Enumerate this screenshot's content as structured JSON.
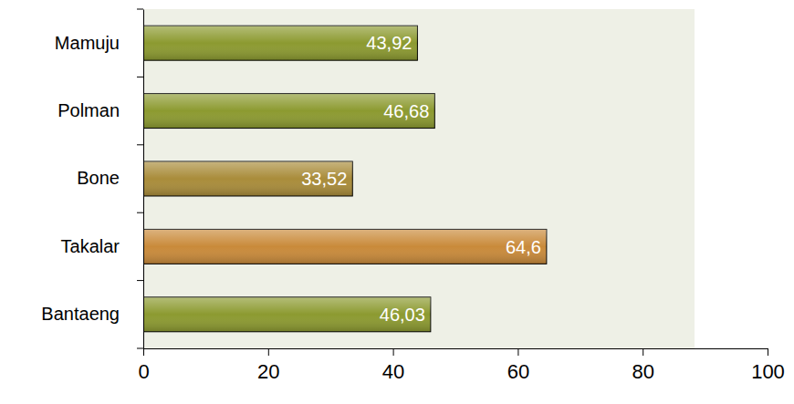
{
  "chart_data": {
    "type": "bar",
    "orientation": "horizontal",
    "categories": [
      "Mamuju",
      "Polman",
      "Bone",
      "Takalar",
      "Bantaeng"
    ],
    "values": [
      43.92,
      46.68,
      33.52,
      64.6,
      46.03
    ],
    "value_labels": [
      "43,92",
      "46,68",
      "33,52",
      "64,6",
      "46,03"
    ],
    "colors": [
      "#8c9a30",
      "#8c9a30",
      "#a98c3a",
      "#c98a3a",
      "#8c9a30"
    ],
    "xlim": [
      0,
      100
    ],
    "xticks": [
      0,
      20,
      40,
      60,
      80,
      100
    ],
    "grid": false,
    "data_labels": true
  }
}
